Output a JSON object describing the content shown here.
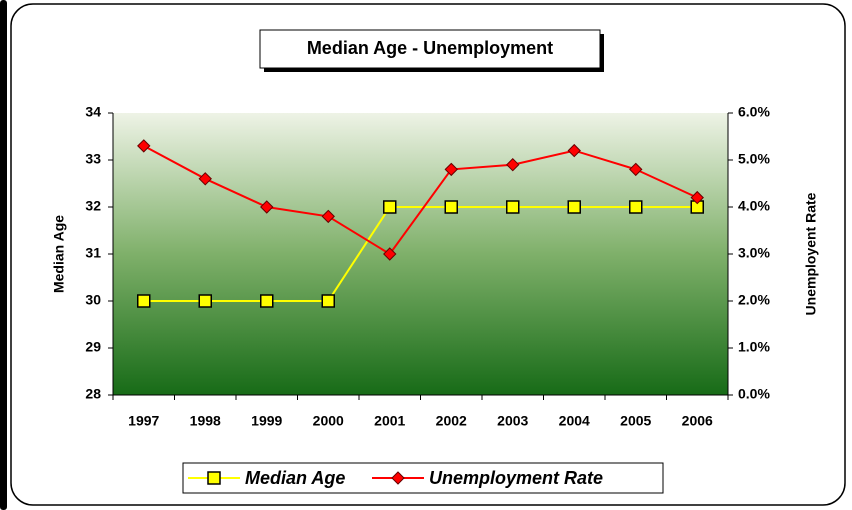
{
  "chart_data": {
    "type": "line",
    "title": "Median Age - Unemployment",
    "y_label": "Median Age",
    "y2_label": "Unemployent Rate",
    "categories": [
      "1997",
      "1998",
      "1999",
      "2000",
      "2001",
      "2002",
      "2003",
      "2004",
      "2005",
      "2006"
    ],
    "series": [
      {
        "name": "Median Age",
        "color": "#ffff00",
        "marker": "square",
        "values": [
          30,
          30,
          30,
          30,
          32,
          32,
          32,
          32,
          32,
          32
        ]
      },
      {
        "name": "Unemployment Rate",
        "color": "#ff0000",
        "marker": "diamond",
        "axis": "y2",
        "values": [
          5.3,
          4.6,
          4.0,
          3.8,
          3.0,
          4.8,
          4.9,
          5.2,
          4.8,
          4.2
        ]
      }
    ],
    "ylim": [
      28,
      34
    ],
    "yticks": [
      28,
      29,
      30,
      31,
      32,
      33,
      34
    ],
    "y2lim": [
      0,
      6
    ],
    "y2ticks": [
      {
        "value": 0,
        "label": "0.0%"
      },
      {
        "value": 1,
        "label": "1.0%"
      },
      {
        "value": 2,
        "label": "2.0%"
      },
      {
        "value": 3,
        "label": "3.0%"
      },
      {
        "value": 4,
        "label": "4.0%"
      },
      {
        "value": 5,
        "label": "5.0%"
      },
      {
        "value": 6,
        "label": "6.0%"
      }
    ],
    "legend": "bottom"
  }
}
